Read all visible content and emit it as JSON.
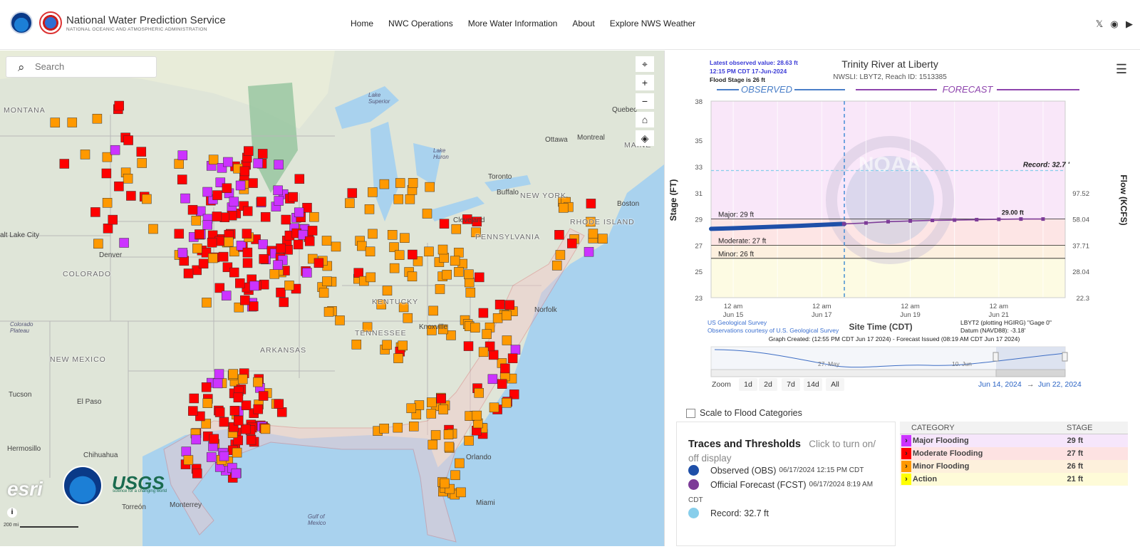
{
  "header": {
    "brand_title": "National Water Prediction Service",
    "brand_subtitle": "NATIONAL OCEANIC AND ATMOSPHERIC ADMINISTRATION",
    "nav": [
      "Home",
      "NWC Operations",
      "More Water Information",
      "About",
      "Explore NWS Weather"
    ],
    "social_icons": [
      "x-icon",
      "github-icon",
      "youtube-icon"
    ]
  },
  "map": {
    "search_placeholder": "Search",
    "tools": [
      "locate-icon",
      "zoom-in-icon",
      "zoom-out-icon",
      "home-icon",
      "layers-icon"
    ],
    "labels": {
      "montana": "MONTANA",
      "colorado": "COLORADO",
      "new_mexico": "NEW MEXICO",
      "arkansas": "ARKANSAS",
      "tennessee": "TENNESSEE",
      "kentucky": "KENTUCKY",
      "pennsylvania": "PENNSYLVANIA",
      "new_york": "NEW YORK",
      "rhode_island": "RHODE ISLAND",
      "maine": "MAINE",
      "denver": "Denver",
      "salt_lake": "alt Lake City",
      "tucson": "Tucson",
      "el_paso": "El Paso",
      "hermosillo": "Hermosillo",
      "chihuahua": "Chihuahua",
      "monterrey": "Monterrey",
      "torreon": "Torreón",
      "miami": "Miami",
      "orlando": "Orlando",
      "norfolk": "Norfolk",
      "knoxville": "Knoxville",
      "cleveland": "Cleveland",
      "buffalo": "Buffalo",
      "toronto": "Toronto",
      "ottawa": "Ottawa",
      "montreal": "Montreal",
      "quebec": "Quebec",
      "boston": "Boston",
      "lake_superior": "Lake Superior",
      "lake_huron": "Lake Huron",
      "gulf": "Gulf of Mexico",
      "colorado_plateau": "Colorado Plateau"
    },
    "logos": {
      "esri": "esri",
      "usgs": "USGS",
      "usgs_tag": "science for a changing world"
    },
    "scale": "200 mi",
    "info": "i"
  },
  "hydrograph": {
    "title": "Trinity River at Liberty",
    "subtitle": "NWSLI: LBYT2, Reach ID: 1513385",
    "latest_value": "Latest observed value: 28.63 ft",
    "latest_time": "12:15 PM CDT 17-Jun-2024",
    "flood_stage": "Flood Stage is 26 ft",
    "observed_label": "OBSERVED",
    "forecast_label": "FORECAST",
    "record_label": "Record: 32.7 '",
    "forecast_peak_label": "29.00 ft",
    "y_axis_left": "Stage (FT)",
    "y_axis_right": "Flow (KCFS)",
    "x_axis": "Site Time (CDT)",
    "left_ticks": [
      "38",
      "35",
      "33",
      "31",
      "29",
      "27",
      "25",
      "23"
    ],
    "right_ticks": [
      "97.52",
      "58.04",
      "37.71",
      "28.04",
      "22.3"
    ],
    "x_ticks": [
      {
        "line1": "12 am",
        "line2": "Jun 15"
      },
      {
        "line1": "12 am",
        "line2": "Jun 17"
      },
      {
        "line1": "12 am",
        "line2": "Jun 19"
      },
      {
        "line1": "12 am",
        "line2": "Jun 21"
      }
    ],
    "thresholds": [
      "Major: 29 ft",
      "Moderate: 27 ft",
      "Minor: 26 ft"
    ],
    "credit1": "US Geological Survey",
    "credit2": "Observations courtesy of U.S. Geological Survey",
    "gauge_info1": "LBYT2 (plotting HGIRG) \"Gage 0\"",
    "gauge_info2": "Datum (NAVD88): -3.18'",
    "graph_created": "Graph Created: (12:55 PM CDT Jun 17 2024) - Forecast Issued (08:19 AM CDT Jun 17 2024)",
    "navigator_labels": [
      "27. May",
      "10. Jun"
    ],
    "zoom_label": "Zoom",
    "zoom_buttons": [
      "1d",
      "2d",
      "7d",
      "14d",
      "All"
    ],
    "range_from": "Jun 14, 2024",
    "range_arrow": "→",
    "range_to": "Jun 22, 2024",
    "watermark": "NOAA"
  },
  "scale_to_flood": "Scale to Flood Categories",
  "traces": {
    "title": "Traces and Thresholds",
    "hint": "Click to turn on/ off display",
    "observed": "Observed (OBS)",
    "observed_date": "06/17/2024 12:15 PM CDT",
    "forecast": "Official Forecast (FCST)",
    "forecast_date": "06/17/2024 8:19 AM",
    "cdt": "CDT",
    "record": "Record: 32.7 ft"
  },
  "categories": {
    "headers": [
      "CATEGORY",
      "STAGE"
    ],
    "rows": [
      {
        "name": "Major Flooding",
        "stage": "29 ft"
      },
      {
        "name": "Moderate Flooding",
        "stage": "27 ft"
      },
      {
        "name": "Minor Flooding",
        "stage": "26 ft"
      },
      {
        "name": "Action",
        "stage": "21 ft"
      }
    ]
  },
  "colors": {
    "major": "#cc33ff",
    "moderate": "#ff0000",
    "minor": "#ff9900",
    "action": "#ffff00",
    "observed": "#1e4fa8",
    "forecast": "#7d3c98",
    "record": "#87ceeb"
  },
  "chart_data": {
    "type": "line",
    "title": "Trinity River at Liberty",
    "xlabel": "Site Time (CDT)",
    "ylabel": "Stage (FT)",
    "ylim": [
      23,
      38
    ],
    "grid": true,
    "series": [
      {
        "name": "Observed (OBS)",
        "x": [
          "2024-06-14T12:00",
          "2024-06-15T00:00",
          "2024-06-15T12:00",
          "2024-06-16T00:00",
          "2024-06-16T12:00",
          "2024-06-17T00:00",
          "2024-06-17T12:15"
        ],
        "values": [
          28.25,
          28.3,
          28.36,
          28.42,
          28.48,
          28.56,
          28.63
        ]
      },
      {
        "name": "Official Forecast (FCST)",
        "x": [
          "2024-06-17T12:00",
          "2024-06-18T00:00",
          "2024-06-18T12:00",
          "2024-06-19T00:00",
          "2024-06-19T12:00",
          "2024-06-20T00:00",
          "2024-06-20T12:00",
          "2024-06-21T00:00",
          "2024-06-21T12:00",
          "2024-06-22T00:00"
        ],
        "values": [
          28.63,
          28.7,
          28.8,
          28.85,
          28.9,
          28.92,
          28.95,
          28.98,
          29.0,
          29.0
        ]
      }
    ],
    "thresholds": {
      "record": 32.7,
      "major": 29,
      "moderate": 27,
      "minor": 26
    },
    "flow_ticks_kcfs": [
      97.52,
      58.04,
      37.71,
      28.04,
      22.3
    ]
  }
}
